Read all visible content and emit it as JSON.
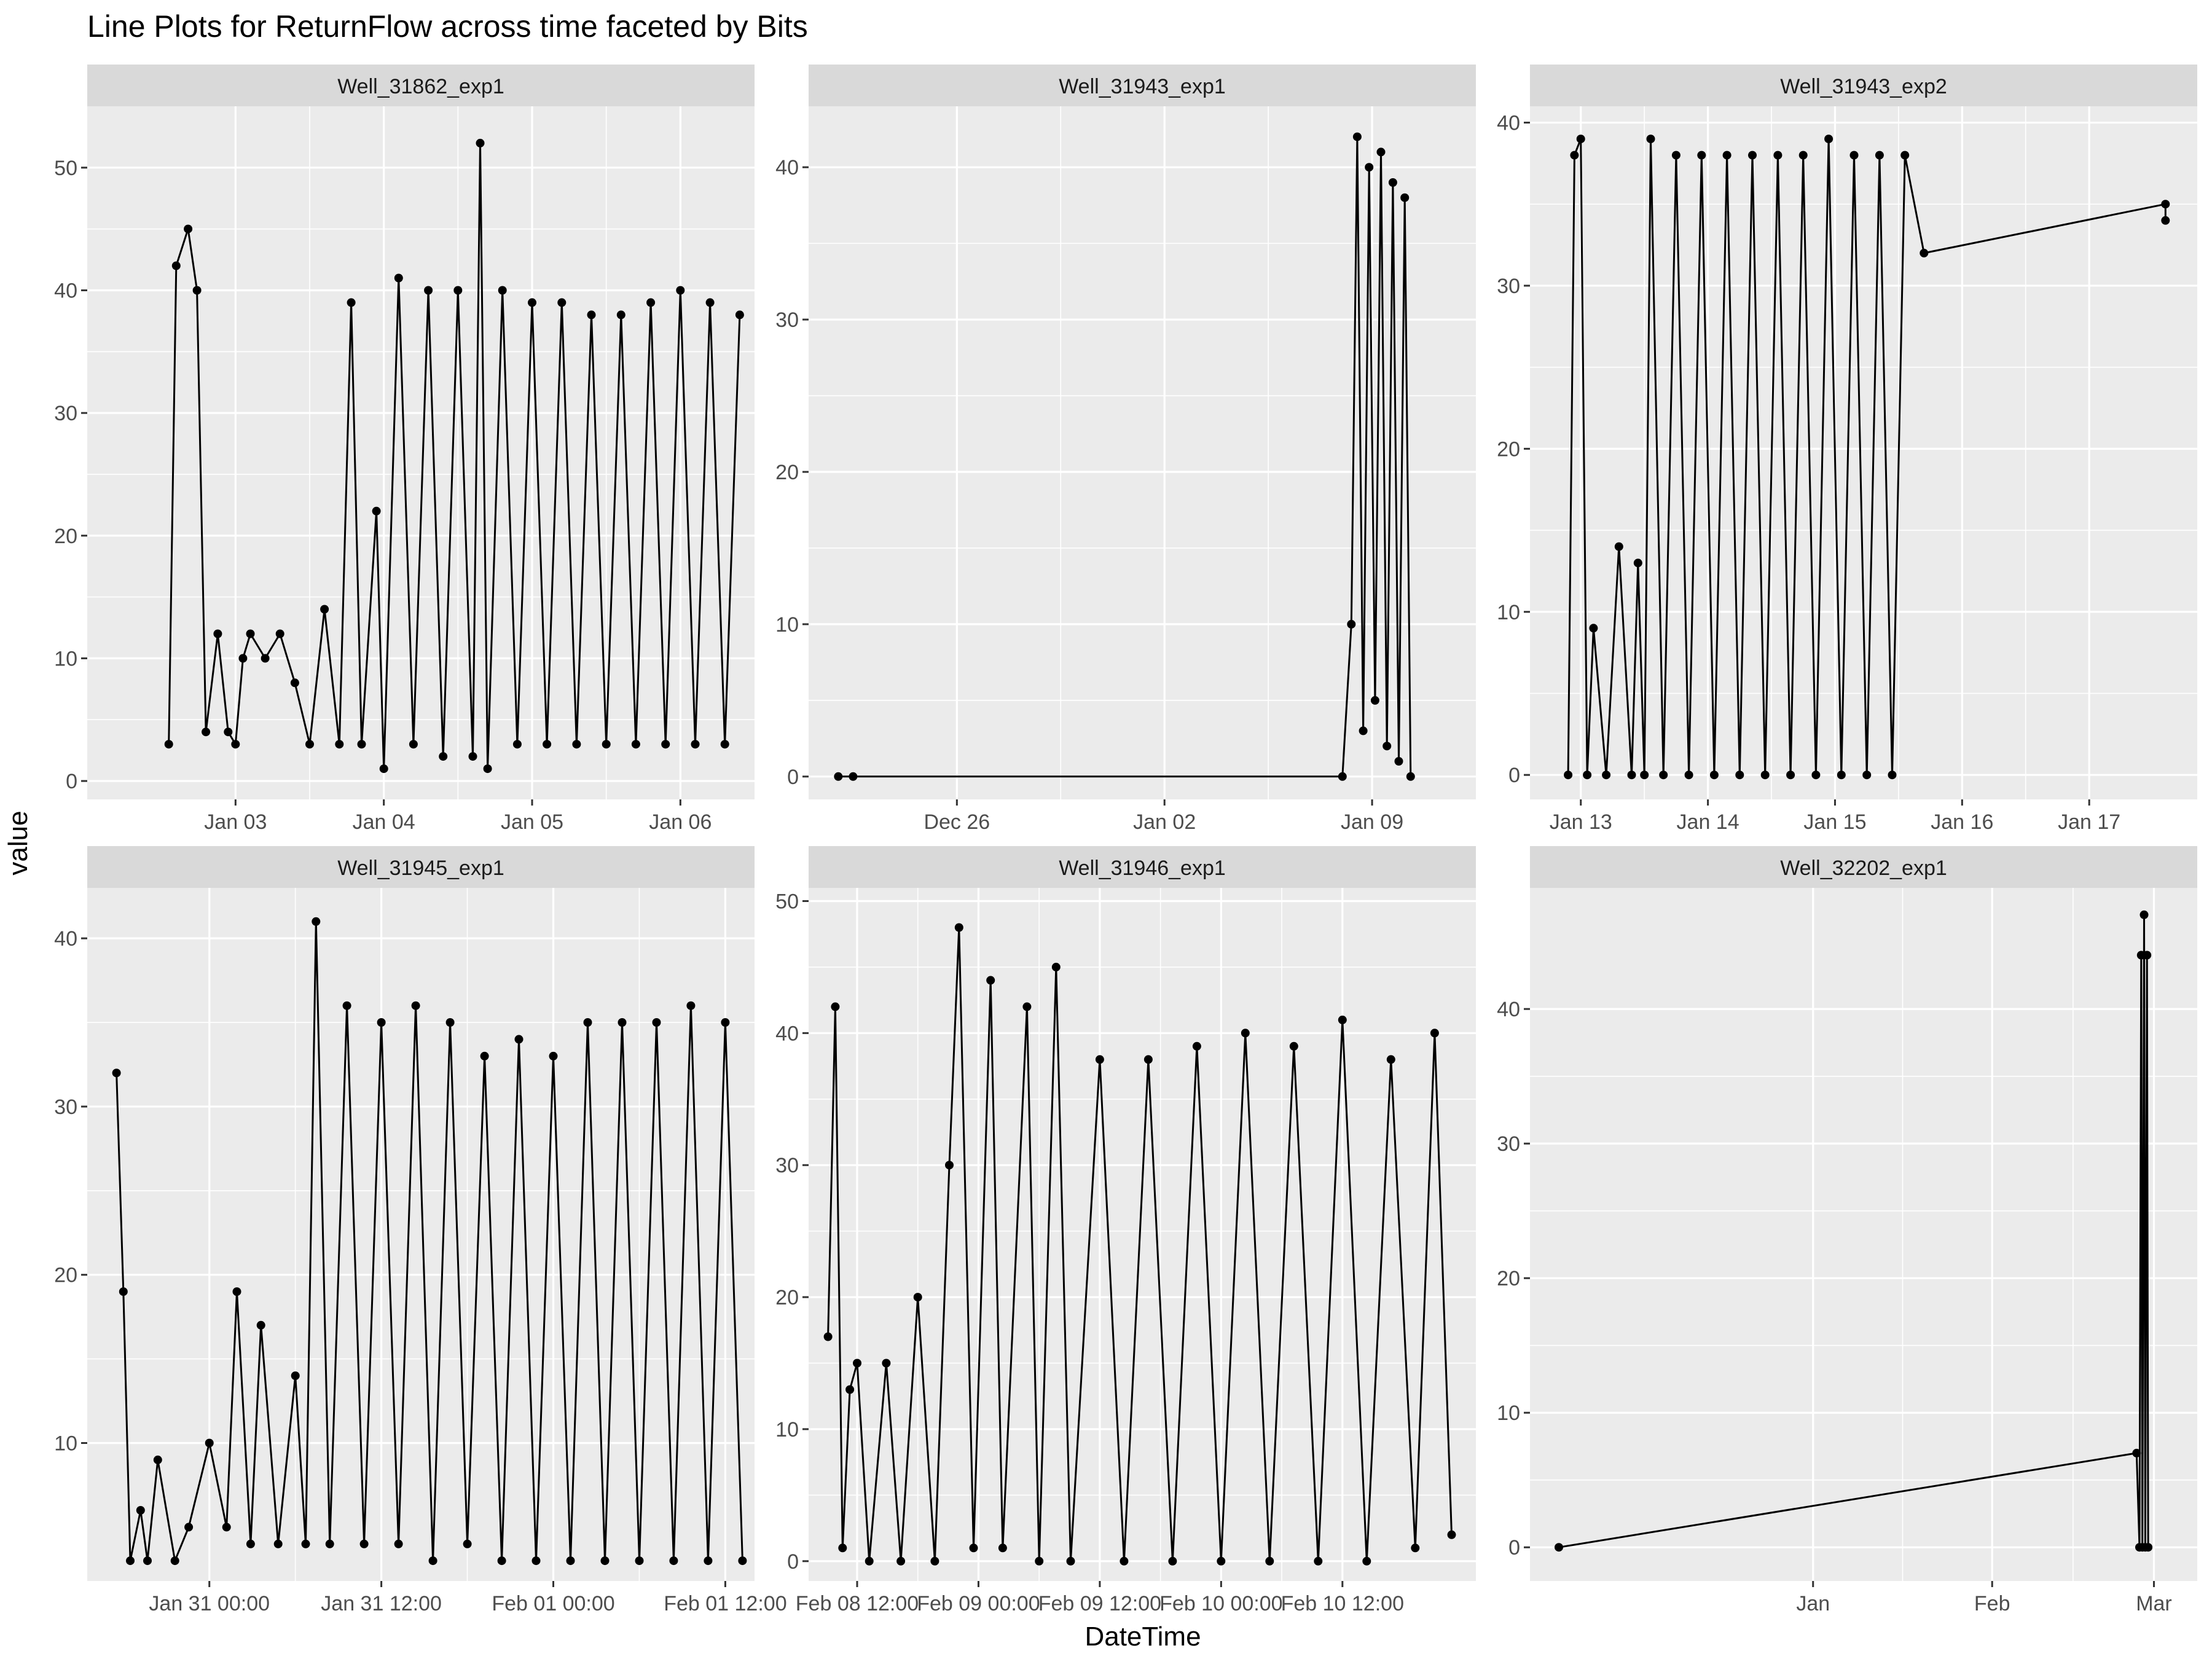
{
  "chart_data": {
    "type": "line",
    "title": "Line Plots for  ReturnFlow  across time faceted by Bits",
    "xlabel": "DateTime",
    "ylabel": "value",
    "colors": {
      "panel": "#ebebeb",
      "strip": "#d9d9d9",
      "grid": "#ffffff",
      "series": "#000000"
    },
    "facets": [
      {
        "name": "Well_31862_exp1",
        "xticks": [
          "Jan 03",
          "Jan 04",
          "Jan 05",
          "Jan 06"
        ],
        "x_range_days": [
          -0.5,
          4.0
        ],
        "tick_days": [
          0.5,
          1.5,
          2.5,
          3.5
        ],
        "yticks": [
          0,
          10,
          20,
          30,
          40,
          50
        ],
        "ylim": [
          -1.5,
          55
        ],
        "points": [
          [
            0.05,
            3
          ],
          [
            0.1,
            42
          ],
          [
            0.18,
            45
          ],
          [
            0.24,
            40
          ],
          [
            0.3,
            4
          ],
          [
            0.38,
            12
          ],
          [
            0.45,
            4
          ],
          [
            0.5,
            3
          ],
          [
            0.55,
            10
          ],
          [
            0.6,
            12
          ],
          [
            0.7,
            10
          ],
          [
            0.8,
            12
          ],
          [
            0.9,
            8
          ],
          [
            1.0,
            3
          ],
          [
            1.1,
            14
          ],
          [
            1.2,
            3
          ],
          [
            1.28,
            39
          ],
          [
            1.35,
            3
          ],
          [
            1.45,
            22
          ],
          [
            1.5,
            1
          ],
          [
            1.6,
            41
          ],
          [
            1.7,
            3
          ],
          [
            1.8,
            40
          ],
          [
            1.9,
            2
          ],
          [
            2.0,
            40
          ],
          [
            2.1,
            2
          ],
          [
            2.15,
            52
          ],
          [
            2.2,
            1
          ],
          [
            2.3,
            40
          ],
          [
            2.4,
            3
          ],
          [
            2.5,
            39
          ],
          [
            2.6,
            3
          ],
          [
            2.7,
            39
          ],
          [
            2.8,
            3
          ],
          [
            2.9,
            38
          ],
          [
            3.0,
            3
          ],
          [
            3.1,
            38
          ],
          [
            3.2,
            3
          ],
          [
            3.3,
            39
          ],
          [
            3.4,
            3
          ],
          [
            3.5,
            40
          ],
          [
            3.6,
            3
          ],
          [
            3.7,
            39
          ],
          [
            3.8,
            3
          ],
          [
            3.9,
            38
          ]
        ]
      },
      {
        "name": "Well_31943_exp1",
        "xticks": [
          "Dec 26",
          "Jan 02",
          "Jan 09"
        ],
        "x_range_days": [
          -16.0,
          6.5
        ],
        "tick_days": [
          -11,
          -4,
          3
        ],
        "yticks": [
          0,
          10,
          20,
          30,
          40
        ],
        "ylim": [
          -1.5,
          44
        ],
        "points": [
          [
            -15.0,
            0
          ],
          [
            -14.5,
            0
          ],
          [
            2.0,
            0
          ],
          [
            2.3,
            10
          ],
          [
            2.5,
            42
          ],
          [
            2.7,
            3
          ],
          [
            2.9,
            40
          ],
          [
            3.1,
            5
          ],
          [
            3.3,
            41
          ],
          [
            3.5,
            2
          ],
          [
            3.7,
            39
          ],
          [
            3.9,
            1
          ],
          [
            4.1,
            38
          ],
          [
            4.3,
            0
          ]
        ]
      },
      {
        "name": "Well_31943_exp2",
        "xticks": [
          "Jan 13",
          "Jan 14",
          "Jan 15",
          "Jan 16",
          "Jan 17"
        ],
        "x_range_days": [
          -0.4,
          4.85
        ],
        "tick_days": [
          0.0,
          1.0,
          2.0,
          3.0,
          4.0
        ],
        "yticks": [
          0,
          10,
          20,
          30,
          40
        ],
        "ylim": [
          -1.5,
          41
        ],
        "points": [
          [
            -0.1,
            0
          ],
          [
            -0.05,
            38
          ],
          [
            0.0,
            39
          ],
          [
            0.05,
            0
          ],
          [
            0.1,
            9
          ],
          [
            0.2,
            0
          ],
          [
            0.3,
            14
          ],
          [
            0.4,
            0
          ],
          [
            0.45,
            13
          ],
          [
            0.5,
            0
          ],
          [
            0.55,
            39
          ],
          [
            0.65,
            0
          ],
          [
            0.75,
            38
          ],
          [
            0.85,
            0
          ],
          [
            0.95,
            38
          ],
          [
            1.05,
            0
          ],
          [
            1.15,
            38
          ],
          [
            1.25,
            0
          ],
          [
            1.35,
            38
          ],
          [
            1.45,
            0
          ],
          [
            1.55,
            38
          ],
          [
            1.65,
            0
          ],
          [
            1.75,
            38
          ],
          [
            1.85,
            0
          ],
          [
            1.95,
            39
          ],
          [
            2.05,
            0
          ],
          [
            2.15,
            38
          ],
          [
            2.25,
            0
          ],
          [
            2.35,
            38
          ],
          [
            2.45,
            0
          ],
          [
            2.55,
            38
          ],
          [
            2.7,
            32
          ],
          [
            4.6,
            35
          ],
          [
            4.6,
            34
          ]
        ]
      },
      {
        "name": "Well_31945_exp1",
        "xticks": [
          "Jan 31 00:00",
          "Jan 31 12:00",
          "Feb 01 00:00",
          "Feb 01 12:00"
        ],
        "x_range_days": [
          -0.355,
          1.585
        ],
        "tick_days": [
          0.0,
          0.5,
          1.0,
          1.5
        ],
        "yticks": [
          10,
          20,
          30,
          40
        ],
        "ylim": [
          1.8,
          43
        ],
        "points": [
          [
            -0.27,
            32
          ],
          [
            -0.25,
            19
          ],
          [
            -0.23,
            3
          ],
          [
            -0.2,
            6
          ],
          [
            -0.18,
            3
          ],
          [
            -0.15,
            9
          ],
          [
            -0.1,
            3
          ],
          [
            -0.06,
            5
          ],
          [
            0.0,
            10
          ],
          [
            0.05,
            5
          ],
          [
            0.08,
            19
          ],
          [
            0.12,
            4
          ],
          [
            0.15,
            17
          ],
          [
            0.2,
            4
          ],
          [
            0.25,
            14
          ],
          [
            0.28,
            4
          ],
          [
            0.31,
            41
          ],
          [
            0.35,
            4
          ],
          [
            0.4,
            36
          ],
          [
            0.45,
            4
          ],
          [
            0.5,
            35
          ],
          [
            0.55,
            4
          ],
          [
            0.6,
            36
          ],
          [
            0.65,
            3
          ],
          [
            0.7,
            35
          ],
          [
            0.75,
            4
          ],
          [
            0.8,
            33
          ],
          [
            0.85,
            3
          ],
          [
            0.9,
            34
          ],
          [
            0.95,
            3
          ],
          [
            1.0,
            33
          ],
          [
            1.05,
            3
          ],
          [
            1.1,
            35
          ],
          [
            1.15,
            3
          ],
          [
            1.2,
            35
          ],
          [
            1.25,
            3
          ],
          [
            1.3,
            35
          ],
          [
            1.35,
            3
          ],
          [
            1.4,
            36
          ],
          [
            1.45,
            3
          ],
          [
            1.5,
            35
          ],
          [
            1.55,
            3
          ]
        ]
      },
      {
        "name": "Well_31946_exp1",
        "xticks": [
          "Feb 08 12:00",
          "Feb 09 00:00",
          "Feb 09 12:00",
          "Feb 10 00:00",
          "Feb 10 12:00"
        ],
        "x_range_days": [
          -0.2,
          2.55
        ],
        "tick_days": [
          0.0,
          0.5,
          1.0,
          1.5,
          2.0
        ],
        "yticks": [
          0,
          10,
          20,
          30,
          40,
          50
        ],
        "ylim": [
          -1.5,
          51
        ],
        "points": [
          [
            -0.12,
            17
          ],
          [
            -0.09,
            42
          ],
          [
            -0.06,
            1
          ],
          [
            -0.03,
            13
          ],
          [
            0.0,
            15
          ],
          [
            0.05,
            0
          ],
          [
            0.12,
            15
          ],
          [
            0.18,
            0
          ],
          [
            0.25,
            20
          ],
          [
            0.32,
            0
          ],
          [
            0.38,
            30
          ],
          [
            0.42,
            48
          ],
          [
            0.48,
            1
          ],
          [
            0.55,
            44
          ],
          [
            0.6,
            1
          ],
          [
            0.7,
            42
          ],
          [
            0.75,
            0
          ],
          [
            0.82,
            45
          ],
          [
            0.88,
            0
          ],
          [
            1.0,
            38
          ],
          [
            1.1,
            0
          ],
          [
            1.2,
            38
          ],
          [
            1.3,
            0
          ],
          [
            1.4,
            39
          ],
          [
            1.5,
            0
          ],
          [
            1.6,
            40
          ],
          [
            1.7,
            0
          ],
          [
            1.8,
            39
          ],
          [
            1.9,
            0
          ],
          [
            2.0,
            41
          ],
          [
            2.1,
            0
          ],
          [
            2.2,
            38
          ],
          [
            2.3,
            1
          ],
          [
            2.38,
            40
          ],
          [
            2.45,
            2
          ]
        ]
      },
      {
        "name": "Well_32202_exp1",
        "xticks": [
          "Jan",
          "Feb",
          "Mar"
        ],
        "x_range_days": [
          -49.0,
          66.5
        ],
        "tick_days": [
          0,
          31,
          59
        ],
        "yticks": [
          0,
          10,
          20,
          30,
          40
        ],
        "ylim": [
          -2.5,
          49
        ],
        "points": [
          [
            -44.0,
            0
          ],
          [
            56.0,
            7
          ],
          [
            56.5,
            0
          ],
          [
            56.8,
            44
          ],
          [
            57.0,
            0
          ],
          [
            57.3,
            47
          ],
          [
            57.5,
            0
          ],
          [
            57.8,
            44
          ],
          [
            58.0,
            0
          ]
        ]
      }
    ]
  }
}
